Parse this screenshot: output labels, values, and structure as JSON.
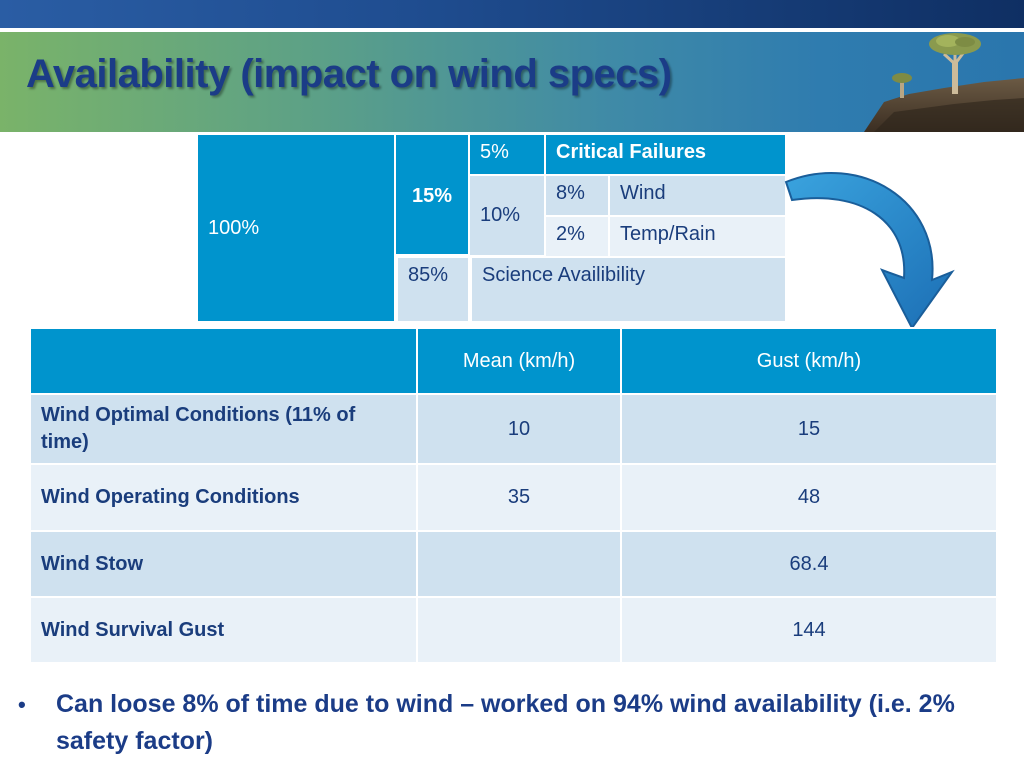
{
  "title": "Availability (impact on wind specs)",
  "breakdown": {
    "total": "100%",
    "downtime": "15%",
    "critical_pct": "5%",
    "critical_label": "Critical Failures",
    "weather_pct": "10%",
    "wind_pct": "8%",
    "wind_label": "Wind",
    "temp_pct": "2%",
    "temp_label": "Temp/Rain",
    "science_pct": "85%",
    "science_label": "Science Availibility"
  },
  "wind_table": {
    "headers": [
      "",
      "Mean (km/h)",
      "Gust (km/h)"
    ],
    "rows": [
      {
        "label": "Wind Optimal Conditions (11% of time)",
        "mean": "10",
        "gust": "15"
      },
      {
        "label": "Wind Operating Conditions",
        "mean": "35",
        "gust": "48"
      },
      {
        "label": "Wind Stow",
        "mean": "",
        "gust": "68.4"
      },
      {
        "label": "Wind Survival Gust",
        "mean": "",
        "gust": "144"
      }
    ]
  },
  "bullet": "Can loose 8% of time due to wind – worked on 94% wind availability (i.e. 2% safety factor)",
  "colors": {
    "table_header": "#0094cd",
    "row_light": "#cfe1ef",
    "row_lighter": "#e9f1f8",
    "title_text": "#1b3c87",
    "arrow": "#2a8fd0"
  },
  "icons": {
    "bullet": "bullet-dot",
    "arrow": "curved-arrow-icon",
    "header_art": "quiver-tree-illustration"
  }
}
